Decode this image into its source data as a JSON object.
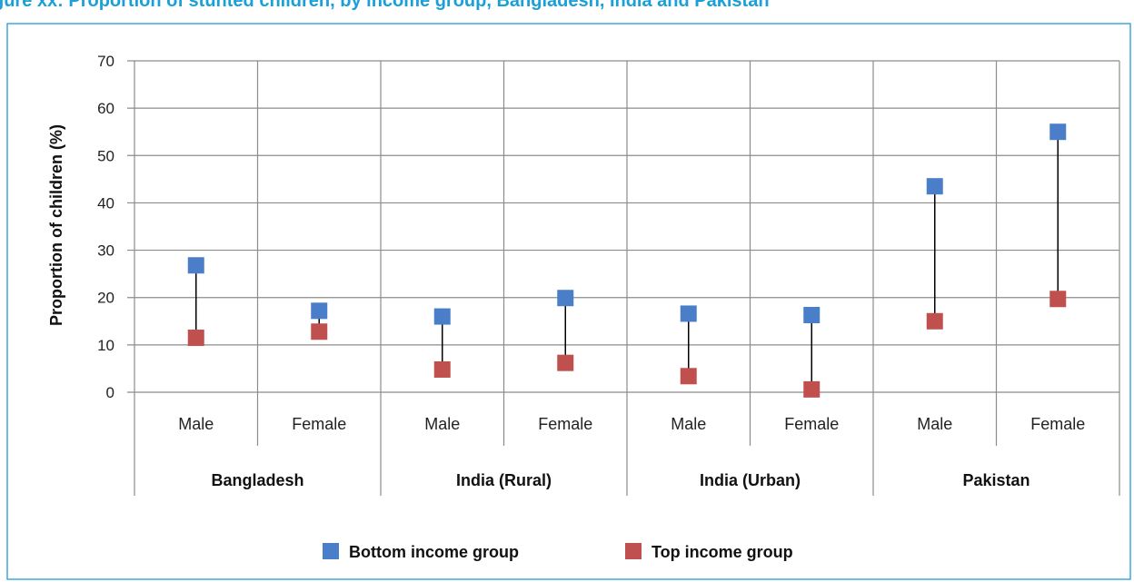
{
  "figure": {
    "title_visible": "gure xx: Proportion of stunted children, by income group, Bangladesh, India and Pakistan"
  },
  "colors": {
    "title": "#1aa0d8",
    "border": "#3fa9dc",
    "grid": "#8c8c8c",
    "bottom_series": "#4a7ec9",
    "top_series": "#c0504d",
    "connector": "#000000"
  },
  "chart_data": {
    "type": "scatter",
    "ylabel": "Proportion of children (%)",
    "ylim": [
      0,
      70
    ],
    "yticks": [
      0,
      10,
      20,
      30,
      40,
      50,
      60,
      70
    ],
    "grid": true,
    "legend_position": "bottom",
    "groups": [
      "Bangladesh",
      "India (Rural)",
      "India (Urban)",
      "Pakistan"
    ],
    "categories": [
      "Male",
      "Female",
      "Male",
      "Female",
      "Male",
      "Female",
      "Male",
      "Female"
    ],
    "series": [
      {
        "name": "Bottom income group",
        "values": [
          26.8,
          17.2,
          16.0,
          19.9,
          16.6,
          16.3,
          43.5,
          55.0
        ]
      },
      {
        "name": "Top income group",
        "values": [
          11.5,
          12.8,
          4.8,
          6.2,
          3.4,
          0.6,
          15.0,
          19.7
        ]
      }
    ]
  }
}
